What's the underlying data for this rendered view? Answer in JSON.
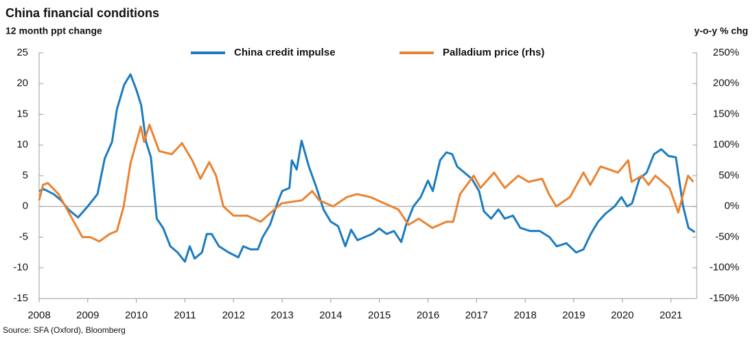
{
  "chart_data": {
    "type": "line",
    "title": "China financial conditions",
    "y_label": "12 month ppt change",
    "y2_label": "y-o-y % chg",
    "source": "Source: SFA (Oxford), Bloomberg",
    "xlim": [
      2008,
      2021.5
    ],
    "xticks": [
      2008,
      2009,
      2010,
      2011,
      2012,
      2013,
      2014,
      2015,
      2016,
      2017,
      2018,
      2019,
      2020,
      2021
    ],
    "ylim": [
      -15,
      25
    ],
    "yticks": [
      -15,
      -10,
      -5,
      0,
      5,
      10,
      15,
      20,
      25
    ],
    "y2lim": [
      -150,
      250
    ],
    "y2ticks": [
      {
        "value": -150,
        "label": "-150%"
      },
      {
        "value": -100,
        "label": "-100%"
      },
      {
        "value": -50,
        "label": "-50%"
      },
      {
        "value": 0,
        "label": "0%"
      },
      {
        "value": 50,
        "label": "50%"
      },
      {
        "value": 100,
        "label": "100%"
      },
      {
        "value": 150,
        "label": "150%"
      },
      {
        "value": 200,
        "label": "200%"
      },
      {
        "value": 250,
        "label": "250%"
      }
    ],
    "legend": "top",
    "series": [
      {
        "name": "China credit impulse",
        "color": "#1b7bc0",
        "x": [
          2008.0,
          2008.1,
          2008.3,
          2008.45,
          2008.6,
          2008.8,
          2009.0,
          2009.2,
          2009.35,
          2009.5,
          2009.6,
          2009.75,
          2009.88,
          2010.0,
          2010.1,
          2010.2,
          2010.3,
          2010.42,
          2010.55,
          2010.7,
          2010.85,
          2011.0,
          2011.1,
          2011.2,
          2011.35,
          2011.45,
          2011.55,
          2011.7,
          2011.9,
          2012.1,
          2012.2,
          2012.35,
          2012.5,
          2012.6,
          2012.75,
          2012.9,
          2013.0,
          2013.15,
          2013.2,
          2013.3,
          2013.4,
          2013.55,
          2013.7,
          2013.85,
          2014.0,
          2014.15,
          2014.3,
          2014.42,
          2014.55,
          2014.7,
          2014.85,
          2015.0,
          2015.15,
          2015.3,
          2015.45,
          2015.55,
          2015.7,
          2015.85,
          2016.0,
          2016.1,
          2016.25,
          2016.38,
          2016.5,
          2016.6,
          2016.75,
          2016.9,
          2017.05,
          2017.15,
          2017.3,
          2017.45,
          2017.58,
          2017.75,
          2017.9,
          2018.1,
          2018.3,
          2018.5,
          2018.65,
          2018.85,
          2019.05,
          2019.2,
          2019.35,
          2019.5,
          2019.65,
          2019.84,
          2019.98,
          2020.1,
          2020.2,
          2020.35,
          2020.5,
          2020.65,
          2020.8,
          2020.95,
          2021.1,
          2021.25,
          2021.36,
          2021.49
        ],
        "values": [
          2.5,
          2.8,
          2.0,
          1.0,
          -0.5,
          -1.8,
          0,
          2,
          7.8,
          10.5,
          15.8,
          19.8,
          21.5,
          19,
          16.5,
          10.5,
          8,
          -2,
          -3.5,
          -6.5,
          -7.5,
          -9,
          -6.5,
          -8.5,
          -7.5,
          -4.5,
          -4.5,
          -6.5,
          -7.5,
          -8.3,
          -6.5,
          -7,
          -7,
          -5,
          -3,
          0.5,
          2.5,
          3.0,
          7.5,
          6,
          10.7,
          6.5,
          3.2,
          -0.5,
          -2.5,
          -3.2,
          -6.5,
          -3.8,
          -5.5,
          -5.0,
          -4.5,
          -3.6,
          -4.5,
          -4,
          -5.8,
          -3,
          0,
          1.5,
          4.2,
          2.5,
          7.5,
          8.8,
          8.5,
          6.5,
          5.5,
          4.5,
          2.5,
          -0.8,
          -2,
          -0.5,
          -2,
          -1.5,
          -3.5,
          -4,
          -4,
          -5,
          -6.5,
          -6,
          -7.5,
          -7,
          -4.5,
          -2.5,
          -1.2,
          0,
          1.5,
          0,
          0.5,
          4.5,
          5.5,
          8.5,
          9.3,
          8.2,
          8,
          0,
          -3.5,
          -4.2
        ]
      },
      {
        "name": "Palladium price (rhs)",
        "color": "#ea8230",
        "axis": "y2",
        "x": [
          2008.0,
          2008.08,
          2008.18,
          2008.4,
          2008.61,
          2008.75,
          2008.89,
          2009.05,
          2009.24,
          2009.45,
          2009.6,
          2009.74,
          2009.88,
          2010.09,
          2010.16,
          2010.27,
          2010.47,
          2010.73,
          2010.94,
          2011.15,
          2011.32,
          2011.5,
          2011.64,
          2011.79,
          2012.0,
          2012.28,
          2012.56,
          2012.77,
          2012.99,
          2013.41,
          2013.62,
          2013.76,
          2014.05,
          2014.33,
          2014.54,
          2014.82,
          2015.1,
          2015.39,
          2015.6,
          2015.81,
          2016.09,
          2016.38,
          2016.52,
          2016.66,
          2016.94,
          2017.08,
          2017.36,
          2017.58,
          2017.86,
          2018.07,
          2018.35,
          2018.49,
          2018.64,
          2018.92,
          2019.2,
          2019.34,
          2019.55,
          2019.91,
          2020.12,
          2020.19,
          2020.4,
          2020.54,
          2020.68,
          2020.97,
          2021.15,
          2021.35,
          2021.46
        ],
        "values": [
          10,
          35,
          38,
          20,
          -10,
          -30,
          -50,
          -50,
          -57,
          -45,
          -40,
          0,
          70,
          130,
          105,
          133,
          90,
          85,
          103,
          75,
          45,
          72,
          50,
          0,
          -15,
          -15,
          -25,
          -10,
          5,
          10,
          25,
          10,
          0,
          15,
          20,
          15,
          5,
          -5,
          -30,
          -20,
          -35,
          -25,
          -25,
          20,
          50,
          30,
          55,
          30,
          50,
          40,
          45,
          20,
          0,
          15,
          55,
          35,
          65,
          55,
          75,
          40,
          50,
          35,
          50,
          30,
          -10,
          50,
          40
        ]
      }
    ]
  }
}
